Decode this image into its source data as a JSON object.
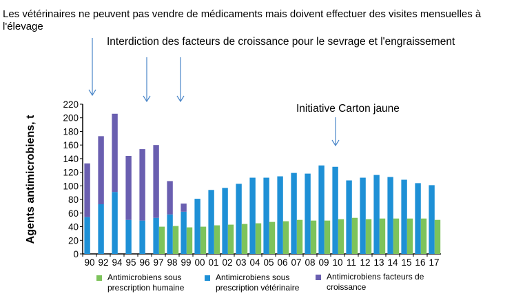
{
  "annotations": {
    "vets": "Les vétérinaires ne peuvent pas vendre de médicaments mais doivent effectuer des visites mensuelles à l'élevage",
    "growth": "Interdiction des facteurs de croissance pour le sevrage et l'engraissement",
    "yellow_card": "Initiative Carton jaune"
  },
  "chart_data": {
    "type": "bar",
    "title": "",
    "xlabel": "",
    "ylabel": "Agents antimicrobiens, t",
    "ylim": [
      0,
      220
    ],
    "yticks": [
      0,
      20,
      40,
      60,
      80,
      100,
      120,
      140,
      160,
      180,
      200,
      220
    ],
    "grid": false,
    "legend_position": "bottom",
    "categories": [
      "90",
      "92",
      "94",
      "95",
      "96",
      "97",
      "98",
      "99",
      "00",
      "01",
      "02",
      "03",
      "04",
      "05",
      "06",
      "07",
      "08",
      "09",
      "10",
      "11",
      "12",
      "13",
      "14",
      "15",
      "16",
      "17"
    ],
    "series": [
      {
        "name": "Antimicrobiens sous prescription humaine",
        "color": "#7dc35b",
        "values": [
          null,
          null,
          null,
          null,
          null,
          40,
          41,
          39,
          40,
          42,
          43,
          44,
          45,
          47,
          48,
          50,
          49,
          49,
          51,
          53,
          51,
          52,
          52,
          52,
          52,
          50
        ]
      },
      {
        "name": "Antimicrobiens sous prescription vétérinaire",
        "color": "#1e90d6",
        "values": [
          54,
          73,
          91,
          50,
          49,
          53,
          58,
          62,
          81,
          94,
          97,
          103,
          112,
          112,
          114,
          119,
          118,
          130,
          128,
          108,
          112,
          116,
          113,
          109,
          104,
          101
        ]
      },
      {
        "name": "Antimicrobiens facteurs de croissance",
        "color": "#6a5fb0",
        "stacked_on": "Antimicrobiens sous prescription vétérinaire",
        "values": [
          79,
          100,
          115,
          94,
          105,
          107,
          49,
          12,
          null,
          null,
          null,
          null,
          null,
          null,
          null,
          null,
          null,
          null,
          null,
          null,
          null,
          null,
          null,
          null,
          null,
          null
        ]
      }
    ]
  }
}
